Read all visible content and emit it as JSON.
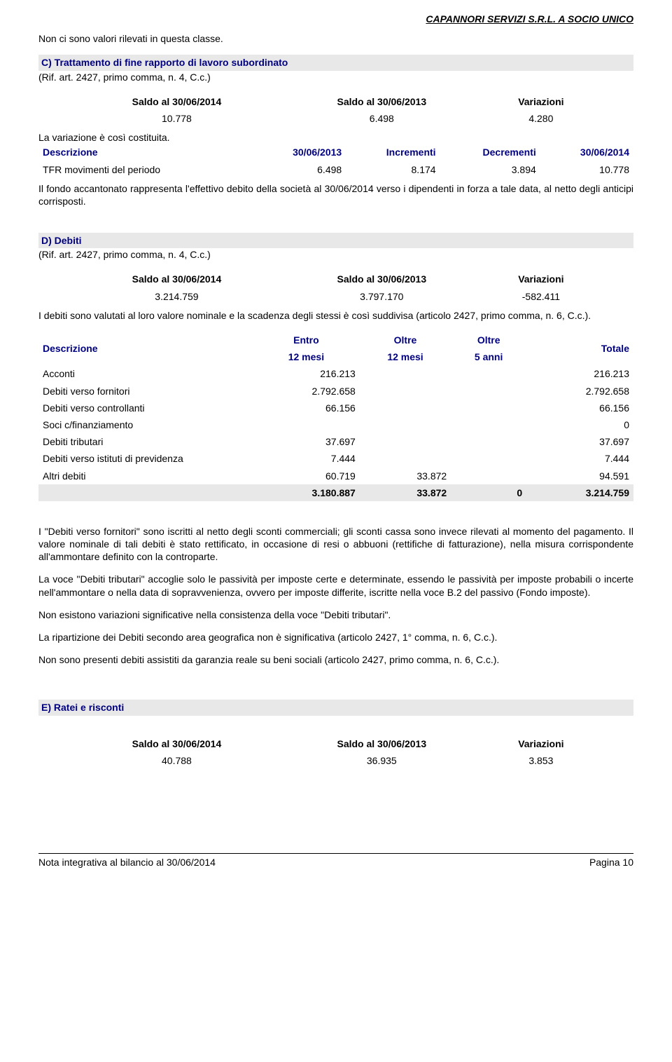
{
  "header": {
    "company": "CAPANNORI SERVIZI S.R.L. A SOCIO UNICO"
  },
  "intro": "Non ci sono valori rilevati in questa classe.",
  "sectionC": {
    "title": "C) Trattamento di fine rapporto di lavoro subordinato",
    "ref": "(Rif. art. 2427, primo comma, n. 4, C.c.)",
    "saldo": {
      "h1": "Saldo al 30/06/2014",
      "h2": "Saldo al 30/06/2013",
      "h3": "Variazioni",
      "v1": "10.778",
      "v2": "6.498",
      "v3": "4.280"
    },
    "varline": "La variazione è così costituita.",
    "mov": {
      "c1": "Descrizione",
      "c2": "30/06/2013",
      "c3": "Incrementi",
      "c4": "Decrementi",
      "c5": "30/06/2014",
      "row_label": "TFR movimenti del periodo",
      "v1": "6.498",
      "v2": "8.174",
      "v3": "3.894",
      "v4": "10.778"
    },
    "note": "Il fondo accantonato rappresenta l'effettivo debito della società al 30/06/2014 verso i dipendenti in forza a tale data, al netto degli anticipi corrisposti."
  },
  "sectionD": {
    "title": "D) Debiti",
    "ref": "(Rif. art. 2427, primo comma, n. 4, C.c.)",
    "saldo": {
      "h1": "Saldo al 30/06/2014",
      "h2": "Saldo al 30/06/2013",
      "h3": "Variazioni",
      "v1": "3.214.759",
      "v2": "3.797.170",
      "v3": "-582.411"
    },
    "intro": "I debiti sono valutati al loro valore nominale e la scadenza degli stessi è così suddivisa (articolo 2427, primo comma, n. 6, C.c.).",
    "table": {
      "c1": "Descrizione",
      "c2a": "Entro",
      "c2b": "12 mesi",
      "c3a": "Oltre",
      "c3b": "12 mesi",
      "c4a": "Oltre",
      "c4b": "5 anni",
      "c5": "Totale",
      "rows": [
        {
          "label": "Acconti",
          "entro": "216.213",
          "oltre12": "",
          "oltre5": "",
          "tot": "216.213"
        },
        {
          "label": "Debiti verso fornitori",
          "entro": "2.792.658",
          "oltre12": "",
          "oltre5": "",
          "tot": "2.792.658"
        },
        {
          "label": "Debiti verso controllanti",
          "entro": "66.156",
          "oltre12": "",
          "oltre5": "",
          "tot": "66.156"
        },
        {
          "label": "Soci c/finanziamento",
          "entro": "",
          "oltre12": "",
          "oltre5": "",
          "tot": "0"
        },
        {
          "label": "Debiti tributari",
          "entro": "37.697",
          "oltre12": "",
          "oltre5": "",
          "tot": "37.697"
        },
        {
          "label": "Debiti verso istituti di previdenza",
          "entro": "7.444",
          "oltre12": "",
          "oltre5": "",
          "tot": "7.444"
        },
        {
          "label": "Altri debiti",
          "entro": "60.719",
          "oltre12": "33.872",
          "oltre5": "",
          "tot": "94.591"
        }
      ],
      "total": {
        "entro": "3.180.887",
        "oltre12": "33.872",
        "oltre5": "0",
        "tot": "3.214.759"
      }
    },
    "p1": "I \"Debiti verso fornitori\" sono iscritti al netto degli sconti commerciali; gli sconti cassa sono invece rilevati al momento del pagamento. Il valore nominale di tali debiti è stato rettificato, in occasione di resi o abbuoni (rettifiche di fatturazione), nella misura corrispondente all'ammontare definito con la controparte.",
    "p2": "La voce \"Debiti tributari\" accoglie solo le passività per imposte certe e determinate, essendo le passività per imposte probabili o incerte nell'ammontare o nella data di sopravvenienza, ovvero per imposte differite, iscritte nella voce B.2 del passivo (Fondo imposte).",
    "p3": "Non esistono variazioni significative nella consistenza della voce \"Debiti tributari\".",
    "p4": "La ripartizione dei Debiti secondo area geografica non è significativa (articolo 2427, 1° comma, n. 6, C.c.).",
    "p5": "Non sono presenti debiti assistiti da garanzia reale su beni sociali (articolo 2427, primo comma, n. 6, C.c.)."
  },
  "sectionE": {
    "title": "E) Ratei e risconti",
    "saldo": {
      "h1": "Saldo al 30/06/2014",
      "h2": "Saldo al 30/06/2013",
      "h3": "Variazioni",
      "v1": "40.788",
      "v2": "36.935",
      "v3": "3.853"
    }
  },
  "footer": {
    "left": "Nota integrativa al bilancio al 30/06/2014",
    "right": "Pagina 10"
  }
}
